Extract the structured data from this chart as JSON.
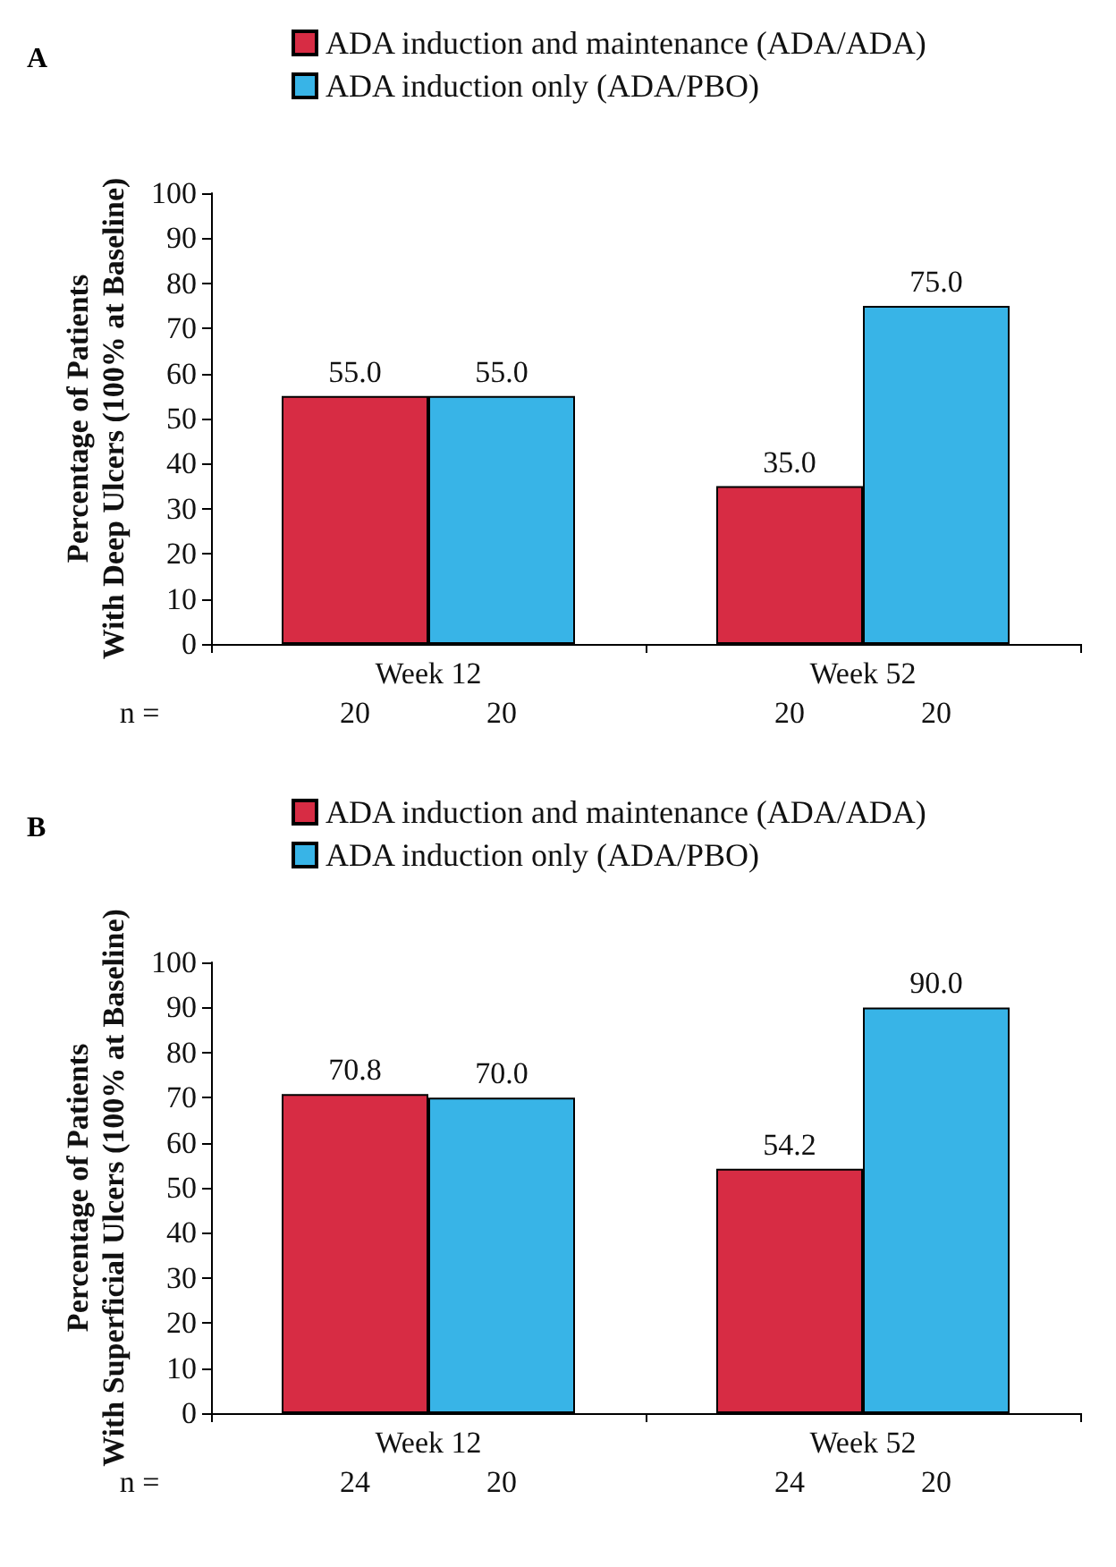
{
  "chart_data": [
    {
      "type": "bar",
      "title": "A",
      "categories": [
        "Week 12",
        "Week 52"
      ],
      "ylabel": "Percentage of Patients\nWith Deep Ulcers (100% at Baseline)",
      "ylim": [
        0,
        100
      ],
      "yticks": [
        0,
        10,
        20,
        30,
        40,
        50,
        60,
        70,
        80,
        90,
        100
      ],
      "grid": false,
      "legend": "top",
      "series": [
        {
          "name": "ADA induction and maintenance (ADA/ADA)",
          "color": "#d72c44",
          "values": [
            55.0,
            35.0
          ],
          "value_labels": [
            "55.0",
            "35.0"
          ]
        },
        {
          "name": "ADA induction only (ADA/PBO)",
          "color": "#38b4e7",
          "values": [
            55.0,
            75.0
          ],
          "value_labels": [
            "55.0",
            "75.0"
          ]
        }
      ],
      "annotations": [
        "n =",
        "20",
        "20",
        "20",
        "20"
      ]
    },
    {
      "type": "bar",
      "title": "B",
      "categories": [
        "Week 12",
        "Week 52"
      ],
      "ylabel": "Percentage of Patients\nWith Superficial Ulcers (100% at Baseline)",
      "ylim": [
        0,
        100
      ],
      "yticks": [
        0,
        10,
        20,
        30,
        40,
        50,
        60,
        70,
        80,
        90,
        100
      ],
      "grid": false,
      "legend": "top",
      "series": [
        {
          "name": "ADA induction and maintenance (ADA/ADA)",
          "color": "#d72c44",
          "values": [
            70.8,
            54.2
          ],
          "value_labels": [
            "70.8",
            "54.2"
          ]
        },
        {
          "name": "ADA induction only (ADA/PBO)",
          "color": "#38b4e7",
          "values": [
            70.0,
            90.0
          ],
          "value_labels": [
            "70.0",
            "90.0"
          ]
        }
      ],
      "annotations": [
        "n =",
        "24",
        "20",
        "24",
        "20"
      ]
    }
  ]
}
